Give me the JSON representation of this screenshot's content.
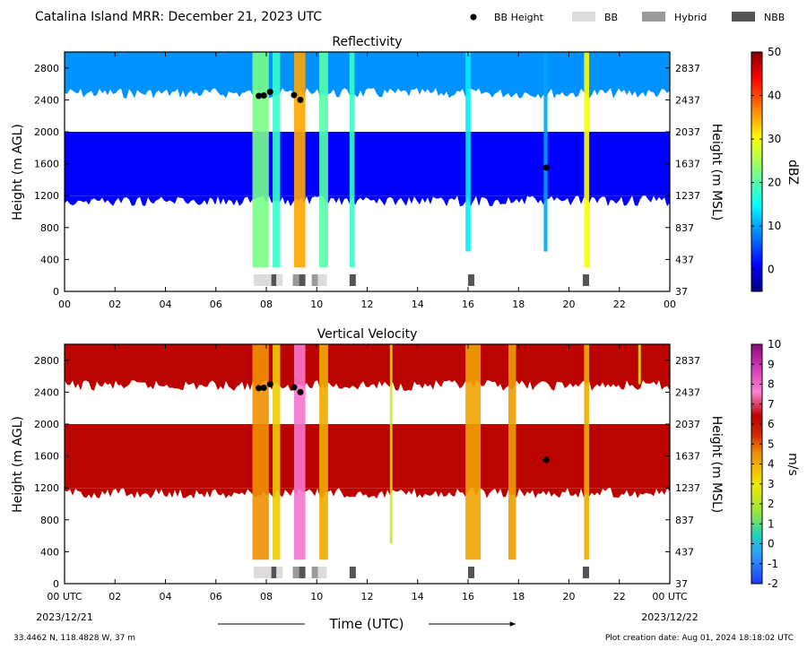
{
  "header": {
    "title": "Catalina Island MRR:  December 21, 2023 UTC",
    "legend": [
      {
        "label": "BB Height",
        "kind": "dot",
        "color": "#000000"
      },
      {
        "label": "BB",
        "kind": "box",
        "color": "#dcdcdc"
      },
      {
        "label": "Hybrid",
        "kind": "box",
        "color": "#9a9a9a"
      },
      {
        "label": "NBB",
        "kind": "box",
        "color": "#555555"
      }
    ]
  },
  "footer": {
    "location": "33.4462 N, 118.4828 W, 37 m",
    "creation": "Plot creation date: Aug 01, 2024 18:18:02 UTC",
    "xlabel": "Time (UTC)",
    "start_date": "2023/12/21",
    "end_date": "2023/12/22"
  },
  "chart_data": [
    {
      "type": "heatmap",
      "title": "Reflectivity",
      "ylabel": "Height (m AGL)",
      "ylabel_right": "Height (m MSL)",
      "xlim": [
        0,
        24
      ],
      "ylim": [
        0,
        3000
      ],
      "x_ticks": [
        "00",
        "02",
        "04",
        "06",
        "08",
        "10",
        "12",
        "14",
        "16",
        "18",
        "20",
        "22",
        "00"
      ],
      "y_ticks_left": [
        "0",
        "400",
        "800",
        "1200",
        "1600",
        "2000",
        "2400",
        "2800"
      ],
      "y_ticks_right": [
        "37",
        "437",
        "837",
        "1237",
        "1637",
        "2037",
        "2437",
        "2837"
      ],
      "colorbar": {
        "label": "dBZ",
        "min": -5,
        "max": 50,
        "ticks": [
          "0",
          "10",
          "20",
          "30",
          "40",
          "50"
        ],
        "colormap": "jet"
      },
      "background_value": 1,
      "layers": [
        {
          "from_m": 2550,
          "to_m": 3000,
          "value": 9
        },
        {
          "from_m": 1200,
          "to_m": 2000,
          "value": 1
        }
      ],
      "precip_streaks": [
        {
          "t_start": 7.45,
          "t_end": 8.1,
          "base_m": 300,
          "value": 22
        },
        {
          "t_start": 8.25,
          "t_end": 8.55,
          "base_m": 300,
          "value": 18
        },
        {
          "t_start": 9.1,
          "t_end": 9.55,
          "base_m": 300,
          "value": 35
        },
        {
          "t_start": 10.1,
          "t_end": 10.45,
          "base_m": 300,
          "value": 20
        },
        {
          "t_start": 11.3,
          "t_end": 11.5,
          "base_m": 300,
          "value": 18
        },
        {
          "t_start": 15.9,
          "t_end": 16.1,
          "base_m": 500,
          "value": 14
        },
        {
          "t_start": 19.0,
          "t_end": 19.15,
          "base_m": 500,
          "value": 10
        },
        {
          "t_start": 20.6,
          "t_end": 20.8,
          "base_m": 300,
          "value": 30
        }
      ],
      "bb_heights": [
        {
          "t": 7.7,
          "h": 2450
        },
        {
          "t": 7.9,
          "h": 2455
        },
        {
          "t": 8.15,
          "h": 2500
        },
        {
          "t": 9.1,
          "h": 2460
        },
        {
          "t": 9.35,
          "h": 2400
        },
        {
          "t": 19.1,
          "h": 1550
        }
      ],
      "bb_types": [
        {
          "t_start": 7.5,
          "t_end": 8.2,
          "type": "BB"
        },
        {
          "t_start": 8.2,
          "t_end": 8.4,
          "type": "NBB"
        },
        {
          "t_start": 8.4,
          "t_end": 8.65,
          "type": "BB"
        },
        {
          "t_start": 9.05,
          "t_end": 9.3,
          "type": "Hybrid"
        },
        {
          "t_start": 9.3,
          "t_end": 9.55,
          "type": "NBB"
        },
        {
          "t_start": 9.8,
          "t_end": 10.05,
          "type": "Hybrid"
        },
        {
          "t_start": 10.05,
          "t_end": 10.4,
          "type": "BB"
        },
        {
          "t_start": 11.3,
          "t_end": 11.55,
          "type": "NBB"
        },
        {
          "t_start": 16.0,
          "t_end": 16.25,
          "type": "NBB"
        },
        {
          "t_start": 20.55,
          "t_end": 20.8,
          "type": "NBB"
        }
      ]
    },
    {
      "type": "heatmap",
      "title": "Vertical Velocity",
      "ylabel": "Height (m AGL)",
      "ylabel_right": "Height (m MSL)",
      "xlim": [
        0,
        24
      ],
      "ylim": [
        0,
        3000
      ],
      "x_ticks": [
        "00 UTC",
        "02",
        "04",
        "06",
        "08",
        "10",
        "12",
        "14",
        "16",
        "18",
        "20",
        "22",
        "00 UTC"
      ],
      "y_ticks_left": [
        "0",
        "400",
        "800",
        "1200",
        "1600",
        "2000",
        "2400",
        "2800"
      ],
      "y_ticks_right": [
        "37",
        "437",
        "837",
        "1237",
        "1637",
        "2037",
        "2437",
        "2837"
      ],
      "colorbar": {
        "label": "m/s",
        "min": -2,
        "max": 10,
        "ticks": [
          "-2",
          "-1",
          "0",
          "1",
          "2",
          "3",
          "4",
          "5",
          "6",
          "7",
          "8",
          "9",
          "10"
        ],
        "colormap": "velocity"
      },
      "background_value": 6.3,
      "layers": [
        {
          "from_m": 2550,
          "to_m": 3000,
          "value": 6.3
        },
        {
          "from_m": 1200,
          "to_m": 2000,
          "value": 6.3
        }
      ],
      "precip_streaks": [
        {
          "t_start": 7.45,
          "t_end": 8.1,
          "base_m": 300,
          "value": 4.5
        },
        {
          "t_start": 8.25,
          "t_end": 8.55,
          "base_m": 300,
          "value": 3.5
        },
        {
          "t_start": 9.1,
          "t_end": 9.55,
          "base_m": 300,
          "value": 7.8
        },
        {
          "t_start": 10.1,
          "t_end": 10.45,
          "base_m": 300,
          "value": 4.0
        },
        {
          "t_start": 12.9,
          "t_end": 13.0,
          "base_m": 500,
          "value": 2.5
        },
        {
          "t_start": 15.9,
          "t_end": 16.5,
          "base_m": 300,
          "value": 4.2
        },
        {
          "t_start": 17.6,
          "t_end": 17.9,
          "base_m": 300,
          "value": 4.3
        },
        {
          "t_start": 20.6,
          "t_end": 20.8,
          "base_m": 300,
          "value": 4.0
        },
        {
          "t_start": 22.75,
          "t_end": 22.85,
          "base_m": 2500,
          "value": 3.0
        }
      ],
      "bb_heights": [
        {
          "t": 7.7,
          "h": 2450
        },
        {
          "t": 7.9,
          "h": 2455
        },
        {
          "t": 8.15,
          "h": 2500
        },
        {
          "t": 9.1,
          "h": 2460
        },
        {
          "t": 9.35,
          "h": 2400
        },
        {
          "t": 19.1,
          "h": 1550
        }
      ],
      "bb_types": [
        {
          "t_start": 7.5,
          "t_end": 8.2,
          "type": "BB"
        },
        {
          "t_start": 8.2,
          "t_end": 8.4,
          "type": "NBB"
        },
        {
          "t_start": 8.4,
          "t_end": 8.65,
          "type": "BB"
        },
        {
          "t_start": 9.05,
          "t_end": 9.3,
          "type": "Hybrid"
        },
        {
          "t_start": 9.3,
          "t_end": 9.55,
          "type": "NBB"
        },
        {
          "t_start": 9.8,
          "t_end": 10.05,
          "type": "Hybrid"
        },
        {
          "t_start": 10.05,
          "t_end": 10.4,
          "type": "BB"
        },
        {
          "t_start": 11.3,
          "t_end": 11.55,
          "type": "NBB"
        },
        {
          "t_start": 16.0,
          "t_end": 16.25,
          "type": "NBB"
        },
        {
          "t_start": 20.55,
          "t_end": 20.8,
          "type": "NBB"
        }
      ]
    }
  ]
}
